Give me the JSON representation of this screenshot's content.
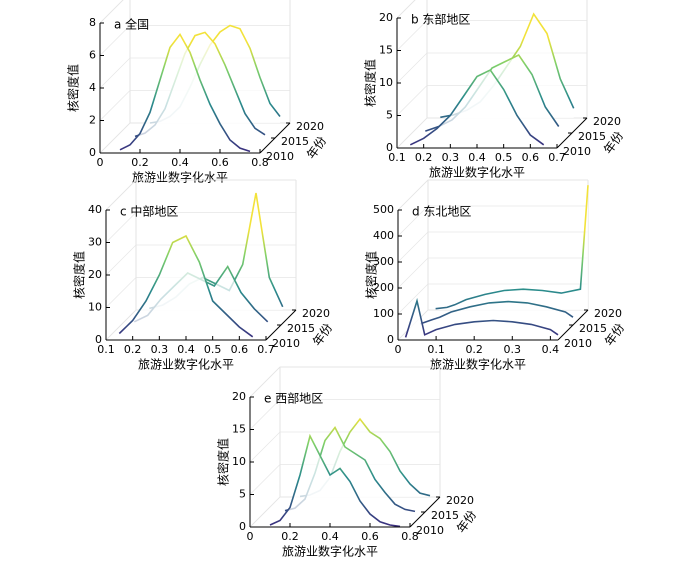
{
  "chart_data": [
    {
      "type": "surface3d",
      "title": "a 全国",
      "xlabel": "旅游业数字化水平",
      "zlabel": "核密度值",
      "ylabel": "年份",
      "x": [
        0.1,
        0.15,
        0.2,
        0.25,
        0.3,
        0.35,
        0.4,
        0.45,
        0.5,
        0.55,
        0.6,
        0.65,
        0.7,
        0.75
      ],
      "series": [
        {
          "year": 2010,
          "values": [
            0.2,
            0.5,
            1.2,
            2.5,
            4.5,
            6.5,
            7.3,
            6.2,
            4.5,
            3,
            1.8,
            0.8,
            0.3,
            0.1
          ]
        },
        {
          "year": 2015,
          "values": [
            0.1,
            0.3,
            0.8,
            1.8,
            3.5,
            5.2,
            6.3,
            6.5,
            5.8,
            4.5,
            3,
            1.5,
            0.6,
            0.2
          ]
        },
        {
          "year": 2020,
          "values": [
            0,
            0.1,
            0.4,
            1,
            2.2,
            3.6,
            4.8,
            5.6,
            6,
            5.8,
            4.6,
            2.8,
            1.2,
            0.4
          ]
        }
      ],
      "xlim": [
        0,
        0.8
      ],
      "xticks": [
        0,
        0.2,
        0.4,
        0.6,
        0.8
      ],
      "zlim": [
        0,
        8
      ],
      "zticks": [
        0,
        2,
        4,
        6,
        8
      ],
      "ylim": [
        2010,
        2020
      ],
      "yticks": [
        2010,
        2015,
        2020
      ]
    },
    {
      "type": "surface3d",
      "title": "b 东部地区",
      "xlabel": "旅游业数字化水平",
      "zlabel": "核密度值",
      "ylabel": "年份",
      "x": [
        0.15,
        0.2,
        0.25,
        0.3,
        0.35,
        0.4,
        0.45,
        0.5,
        0.55,
        0.6,
        0.65
      ],
      "series": [
        {
          "year": 2010,
          "values": [
            0.5,
            1.5,
            3,
            5,
            8,
            11,
            12,
            9,
            5,
            2,
            0.5
          ]
        },
        {
          "year": 2015,
          "values": [
            0.3,
            1,
            2,
            4,
            7,
            10,
            11,
            12,
            9,
            4,
            1
          ]
        },
        {
          "year": 2020,
          "values": [
            0.1,
            0.5,
            1.2,
            2.5,
            5,
            8,
            11,
            16,
            13,
            6,
            1.5
          ]
        }
      ],
      "xlim": [
        0.1,
        0.7
      ],
      "xticks": [
        0.1,
        0.2,
        0.3,
        0.4,
        0.5,
        0.6,
        0.7
      ],
      "zlim": [
        0,
        20
      ],
      "zticks": [
        0,
        5,
        10,
        15,
        20
      ],
      "ylim": [
        2010,
        2020
      ],
      "yticks": [
        2010,
        2015,
        2020
      ]
    },
    {
      "type": "surface3d",
      "title": "c 中部地区",
      "xlabel": "旅游业数字化水平",
      "zlabel": "核密度值",
      "ylabel": "年份",
      "x": [
        0.15,
        0.2,
        0.25,
        0.3,
        0.35,
        0.4,
        0.45,
        0.5,
        0.55,
        0.6,
        0.65
      ],
      "series": [
        {
          "year": 2010,
          "values": [
            2,
            6,
            12,
            20,
            30,
            32,
            24,
            12,
            8,
            4,
            1
          ]
        },
        {
          "year": 2015,
          "values": [
            1,
            3,
            8,
            12,
            16,
            14,
            12,
            18,
            10,
            5,
            1
          ]
        },
        {
          "year": 2020,
          "values": [
            0.5,
            1.5,
            4,
            8,
            10,
            8,
            6,
            14,
            36,
            10,
            1
          ]
        }
      ],
      "xlim": [
        0.1,
        0.7
      ],
      "xticks": [
        0.1,
        0.2,
        0.3,
        0.4,
        0.5,
        0.6,
        0.7
      ],
      "zlim": [
        0,
        40
      ],
      "zticks": [
        0,
        10,
        20,
        30,
        40
      ],
      "ylim": [
        2010,
        2020
      ],
      "yticks": [
        2010,
        2015,
        2020
      ]
    },
    {
      "type": "surface3d",
      "title": "d 东北地区",
      "xlabel": "旅游业数字化水平",
      "zlabel": "核密度值",
      "ylabel": "年份",
      "x": [
        0.02,
        0.05,
        0.07,
        0.1,
        0.15,
        0.2,
        0.25,
        0.3,
        0.35,
        0.4,
        0.42
      ],
      "series": [
        {
          "year": 2010,
          "values": [
            10,
            150,
            20,
            40,
            60,
            70,
            75,
            70,
            60,
            40,
            20
          ]
        },
        {
          "year": 2015,
          "values": [
            5,
            20,
            30,
            50,
            70,
            85,
            90,
            85,
            70,
            50,
            30
          ]
        },
        {
          "year": 2020,
          "values": [
            5,
            10,
            20,
            40,
            60,
            75,
            80,
            75,
            65,
            80,
            480
          ]
        }
      ],
      "xlim": [
        0,
        0.42
      ],
      "xticks": [
        0,
        0.1,
        0.2,
        0.3,
        0.4
      ],
      "zlim": [
        0,
        500
      ],
      "zticks": [
        0,
        100,
        200,
        300,
        400,
        500
      ],
      "ylim": [
        2010,
        2020
      ],
      "yticks": [
        2010,
        2015,
        2020
      ]
    },
    {
      "type": "surface3d",
      "title": "e 西部地区",
      "xlabel": "旅游业数字化水平",
      "zlabel": "核密度值",
      "ylabel": "年份",
      "x": [
        0.1,
        0.15,
        0.2,
        0.25,
        0.3,
        0.35,
        0.4,
        0.45,
        0.5,
        0.55,
        0.6,
        0.65,
        0.7,
        0.75
      ],
      "series": [
        {
          "year": 2010,
          "values": [
            0.3,
            1,
            3,
            8,
            14,
            11,
            8,
            9,
            7,
            4,
            2,
            0.8,
            0.3,
            0.1
          ]
        },
        {
          "year": 2015,
          "values": [
            0.2,
            0.6,
            2,
            6,
            11,
            13,
            10,
            9,
            8,
            5,
            3,
            1.2,
            0.4,
            0.1
          ]
        },
        {
          "year": 2020,
          "values": [
            0.1,
            0.3,
            1,
            3,
            7,
            10,
            12,
            10,
            9,
            7,
            4,
            2,
            0.6,
            0.2
          ]
        }
      ],
      "xlim": [
        0,
        0.8
      ],
      "xticks": [
        0,
        0.2,
        0.4,
        0.6,
        0.8
      ],
      "zlim": [
        0,
        20
      ],
      "zticks": [
        0,
        5,
        10,
        15,
        20
      ],
      "ylim": [
        2010,
        2020
      ],
      "yticks": [
        2010,
        2015,
        2020
      ]
    }
  ]
}
